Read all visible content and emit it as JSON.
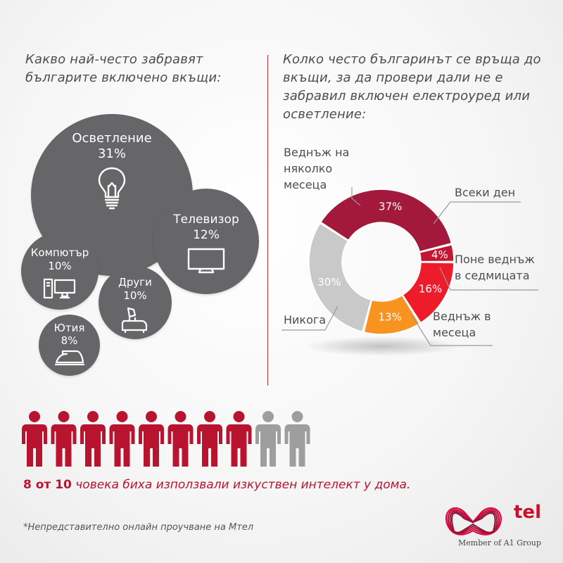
{
  "left_title": "Какво най-често забравят българите включено вкъщи:",
  "right_title": "Колко често българинът се връща до вкъщи, за да провери дали не е забравил включен електроуред или осветление:",
  "bubbles": {
    "lighting": {
      "label": "Осветление",
      "value": "31%",
      "icon": "light-bulb-icon"
    },
    "tv": {
      "label": "Телевизор",
      "value": "12%",
      "icon": "tv-icon"
    },
    "computer": {
      "label": "Компютър",
      "value": "10%",
      "icon": "computer-icon"
    },
    "other": {
      "label": "Други",
      "value": "10%",
      "icon": "kettle-toaster-icon"
    },
    "iron": {
      "label": "Ютия",
      "value": "8%",
      "icon": "iron-icon"
    }
  },
  "chart_data": [
    {
      "type": "bubble",
      "title": "Какво най-често забравят българите включено вкъщи:",
      "categories": [
        "Осветление",
        "Телевизор",
        "Компютър",
        "Други",
        "Ютия"
      ],
      "values": [
        31,
        12,
        10,
        10,
        8
      ],
      "unit": "%"
    },
    {
      "type": "pie",
      "title": "Колко често българинът се връща до вкъщи, за да провери дали не е забравил включен електроуред или осветление:",
      "categories": [
        "Веднъж на няколко месеца",
        "Всеки ден",
        "Поне веднъж в седмицата",
        "Веднъж в месеца",
        "Никога"
      ],
      "values": [
        37,
        4,
        16,
        13,
        30
      ],
      "unit": "%",
      "colors": [
        "#a3193b",
        "#c41632",
        "#ee1c2b",
        "#f7931e",
        "#c9c9c9"
      ],
      "label_lines": [
        [
          "Веднъж на",
          "няколко",
          "месеца"
        ],
        [
          "Всеки ден"
        ],
        [
          "Поне веднъж",
          "в седмицата"
        ],
        [
          "Веднъж в",
          "месеца"
        ],
        [
          "Никога"
        ]
      ]
    }
  ],
  "people": {
    "total": 10,
    "highlighted": 10,
    "highlighted_count": 8,
    "color_on": "#b8142f",
    "color_off": "#9e9e9e"
  },
  "ai_note": {
    "count": "8 от 10",
    "text": " човека биха използвали изкуствен интелект у дома."
  },
  "footnote": "*Непредставително онлайн проучване на Мтел",
  "brand": {
    "logo_text": "tel",
    "tagline": "Member of A1 Group",
    "color": "#c8102e"
  }
}
